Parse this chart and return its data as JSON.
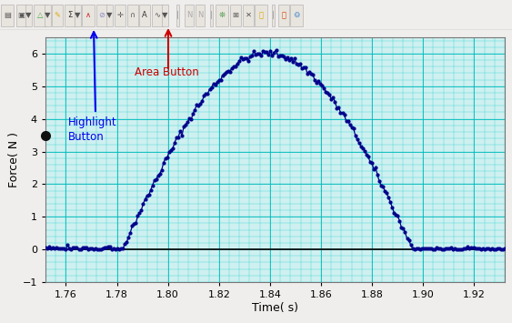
{
  "title": "",
  "xlabel": "Time( s)",
  "ylabel": "Force( N )",
  "xlim": [
    1.752,
    1.932
  ],
  "ylim": [
    -1.0,
    6.5
  ],
  "yticks": [
    -1.0,
    0.0,
    1.0,
    2.0,
    3.0,
    4.0,
    5.0,
    6.0
  ],
  "xticks": [
    1.76,
    1.78,
    1.8,
    1.82,
    1.84,
    1.86,
    1.88,
    1.9,
    1.92
  ],
  "curve_color": "#00008B",
  "bg_color": "#cff0f0",
  "grid_major_color": "#00bbbb",
  "grid_minor_color": "#00cccc",
  "toolbar_bg": "#f0eeec",
  "toolbar_border": "#aaaaaa",
  "peak_time": 1.838,
  "peak_force": 6.02,
  "rise_start": 1.782,
  "fall_end": 1.896,
  "noise_amplitude": 0.055,
  "baseline_noise": 0.04,
  "annotation_highlight_color": "#0000ee",
  "annotation_area_color": "#cc0000",
  "dot_color": "#111111",
  "zero_line_color": "#000000",
  "spine_color": "#777777",
  "tick_label_size": 8,
  "axis_label_size": 9
}
